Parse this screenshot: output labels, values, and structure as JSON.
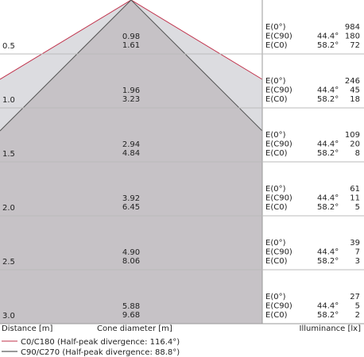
{
  "labels": {
    "e0": "E(0°)",
    "ec90": "E(C90)",
    "ec0": "E(C0)",
    "angle_c90": "44.4°",
    "angle_c0": "58.2°"
  },
  "rows": [
    {
      "distance": "0.5",
      "diameters": [
        "0.98",
        "1.61"
      ],
      "illuminance": [
        "984",
        "180",
        "72"
      ]
    },
    {
      "distance": "1.0",
      "diameters": [
        "1.96",
        "3.23"
      ],
      "illuminance": [
        "246",
        "45",
        "18"
      ]
    },
    {
      "distance": "1.5",
      "diameters": [
        "2.94",
        "4.84"
      ],
      "illuminance": [
        "109",
        "20",
        "8"
      ]
    },
    {
      "distance": "2.0",
      "diameters": [
        "3.92",
        "6.45"
      ],
      "illuminance": [
        "61",
        "11",
        "5"
      ]
    },
    {
      "distance": "2.5",
      "diameters": [
        "4.90",
        "8.06"
      ],
      "illuminance": [
        "39",
        "7",
        "3"
      ]
    },
    {
      "distance": "3.0",
      "diameters": [
        "5.88",
        "9.68"
      ],
      "illuminance": [
        "27",
        "5",
        "2"
      ]
    }
  ],
  "footer": {
    "distance": "Distance [m]",
    "diameter": "Cone diameter [m]",
    "illuminance": "Illuminance [lx]"
  },
  "legend": [
    "C0/C180 (Half-peak divergence: 116.4°)",
    "C90/C270 (Half-peak divergence: 88.8°)"
  ]
}
